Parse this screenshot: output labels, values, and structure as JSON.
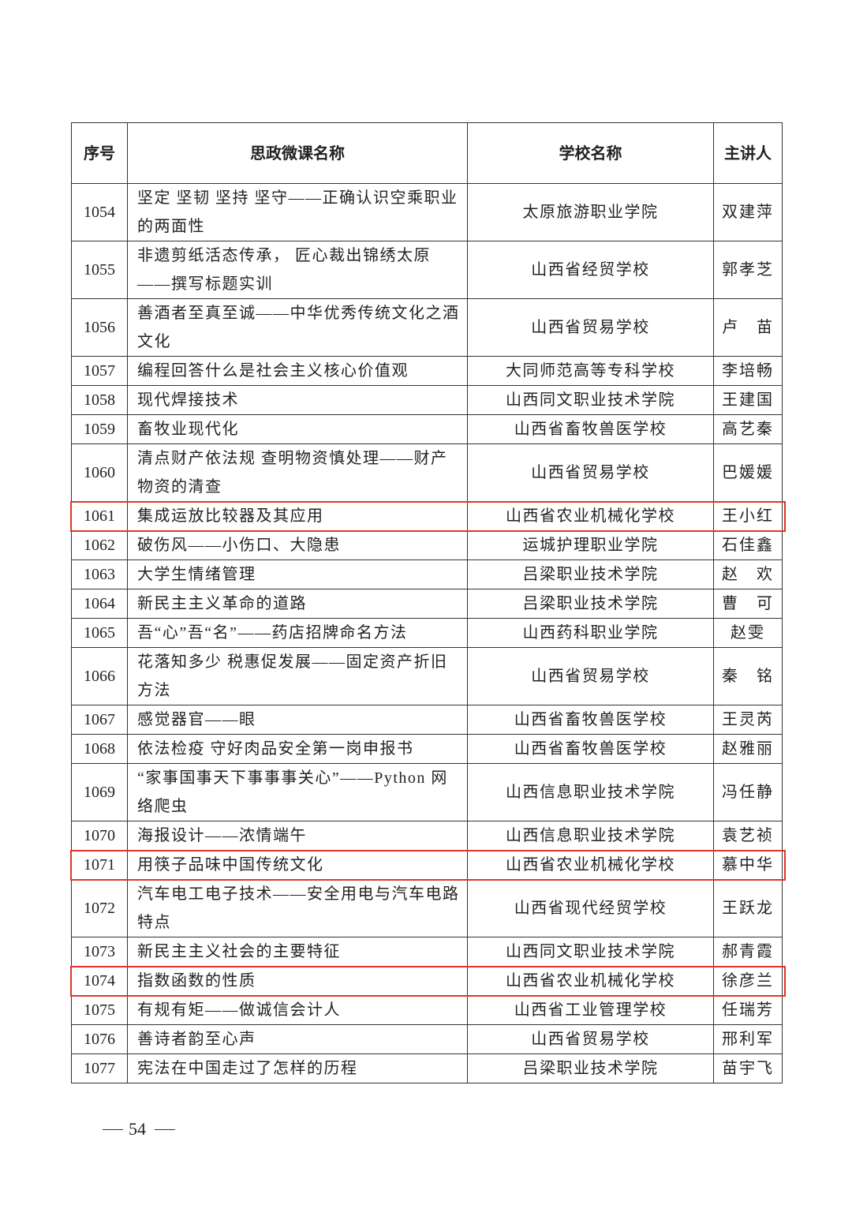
{
  "table": {
    "header": [
      "序号",
      "思政微课名称",
      "学校名称",
      "主讲人"
    ],
    "rows": [
      {
        "cells": [
          "1054",
          "坚定 坚韧 坚持 坚守——正确认识空乘职业的两面性",
          "太原旅游职业学院",
          "双建萍"
        ]
      },
      {
        "cells": [
          "1055",
          "非遗剪纸活态传承， 匠心裁出锦绣太原——撰写标题实训",
          "山西省经贸学校",
          "郭孝芝"
        ]
      },
      {
        "cells": [
          "1056",
          "善酒者至真至诚——中华优秀传统文化之酒文化",
          "山西省贸易学校",
          "卢　苗"
        ]
      },
      {
        "cells": [
          "1057",
          "编程回答什么是社会主义核心价值观",
          "大同师范高等专科学校",
          "李培畅"
        ]
      },
      {
        "cells": [
          "1058",
          "现代焊接技术",
          "山西同文职业技术学院",
          "王建国"
        ]
      },
      {
        "cells": [
          "1059",
          "畜牧业现代化",
          "山西省畜牧兽医学校",
          "高艺秦"
        ]
      },
      {
        "cells": [
          "1060",
          "清点财产依法规 查明物资慎处理——财产物资的清查",
          "山西省贸易学校",
          "巴媛媛"
        ]
      },
      {
        "cells": [
          "1061",
          "集成运放比较器及其应用",
          "山西省农业机械化学校",
          "王小红"
        ],
        "highlight": true
      },
      {
        "cells": [
          "1062",
          "破伤风——小伤口、大隐患",
          "运城护理职业学院",
          "石佳鑫"
        ]
      },
      {
        "cells": [
          "1063",
          "大学生情绪管理",
          "吕梁职业技术学院",
          "赵　欢"
        ]
      },
      {
        "cells": [
          "1064",
          "新民主主义革命的道路",
          "吕梁职业技术学院",
          "曹　可"
        ]
      },
      {
        "cells": [
          "1065",
          "吾“心”吾“名”——药店招牌命名方法",
          "山西药科职业学院",
          "赵雯"
        ]
      },
      {
        "cells": [
          "1066",
          "花落知多少 税惠促发展——固定资产折旧方法",
          "山西省贸易学校",
          "秦　铭"
        ]
      },
      {
        "cells": [
          "1067",
          "感觉器官——眼",
          "山西省畜牧兽医学校",
          "王灵芮"
        ]
      },
      {
        "cells": [
          "1068",
          "依法检疫 守好肉品安全第一岗申报书",
          "山西省畜牧兽医学校",
          "赵雅丽"
        ]
      },
      {
        "cells": [
          "1069",
          "“家事国事天下事事事关心”——Python 网络爬虫",
          "山西信息职业技术学院",
          "冯任静"
        ]
      },
      {
        "cells": [
          "1070",
          "海报设计——浓情端午",
          "山西信息职业技术学院",
          "袁艺祯"
        ]
      },
      {
        "cells": [
          "1071",
          "用筷子品味中国传统文化",
          "山西省农业机械化学校",
          "慕中华"
        ],
        "highlight": true
      },
      {
        "cells": [
          "1072",
          "汽车电工电子技术——安全用电与汽车电路特点",
          "山西省现代经贸学校",
          "王跃龙"
        ]
      },
      {
        "cells": [
          "1073",
          "新民主主义社会的主要特征",
          "山西同文职业技术学院",
          "郝青霞"
        ]
      },
      {
        "cells": [
          "1074",
          "指数函数的性质",
          "山西省农业机械化学校",
          "徐彦兰"
        ],
        "highlight": true
      },
      {
        "cells": [
          "1075",
          "有规有矩——做诚信会计人",
          "山西省工业管理学校",
          "任瑞芳"
        ]
      },
      {
        "cells": [
          "1076",
          "善诗者韵至心声",
          "山西省贸易学校",
          "邢利军"
        ]
      },
      {
        "cells": [
          "1077",
          "宪法在中国走过了怎样的历程",
          "吕梁职业技术学院",
          "苗宇飞"
        ]
      }
    ]
  },
  "footer": {
    "page_number": "54"
  }
}
